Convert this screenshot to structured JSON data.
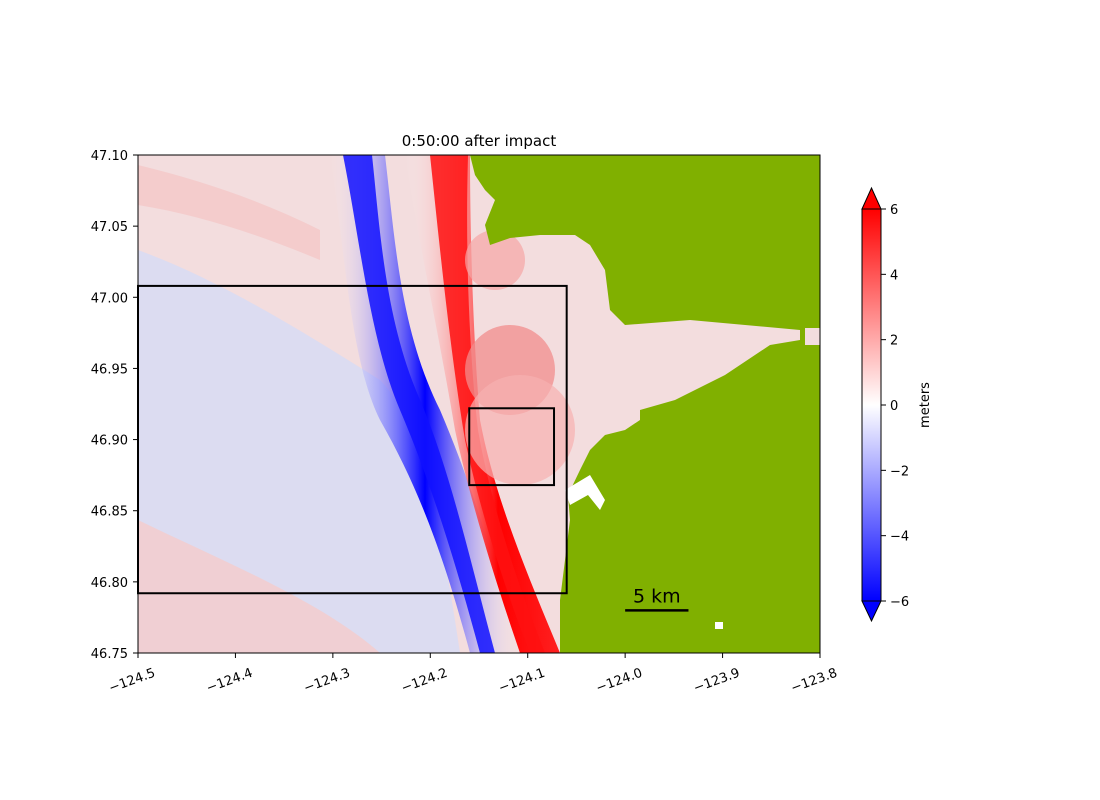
{
  "chart_data": {
    "type": "heatmap",
    "title": "0:50:00 after impact",
    "xlabel": "",
    "ylabel": "",
    "xlim": [
      -124.5,
      -123.8
    ],
    "ylim": [
      46.75,
      47.1
    ],
    "xticks": [
      -124.5,
      -124.4,
      -124.3,
      -124.2,
      -124.1,
      -124.0,
      -123.9,
      -123.8
    ],
    "xtick_labels": [
      "−124.5",
      "−124.4",
      "−124.3",
      "−124.2",
      "−124.1",
      "−124.0",
      "−123.9",
      "−123.8"
    ],
    "yticks": [
      46.75,
      46.8,
      46.85,
      46.9,
      46.95,
      47.0,
      47.05,
      47.1
    ],
    "ytick_labels": [
      "46.75",
      "46.80",
      "46.85",
      "46.90",
      "46.95",
      "47.00",
      "47.05",
      "47.10"
    ],
    "value_label": "meters",
    "colorbar": {
      "label": "meters",
      "range": [
        -6,
        6
      ],
      "extend": "both",
      "ticks": [
        -6,
        -4,
        -2,
        0,
        2,
        4,
        6
      ],
      "tick_labels": [
        "−6",
        "−4",
        "−2",
        "0",
        "2",
        "4",
        "6"
      ],
      "colors": {
        "low": "#0000ff",
        "mid": "#ffffff",
        "high": "#ff0000"
      }
    },
    "land_color": "#80b000",
    "rectangles": [
      {
        "name": "outer-region",
        "lon": [
          -124.5,
          -124.06
        ],
        "lat": [
          46.792,
          47.008
        ]
      },
      {
        "name": "inner-region",
        "lon": [
          -124.16,
          -124.073
        ],
        "lat": [
          46.868,
          46.922
        ]
      }
    ],
    "scale_bar": {
      "label": "5 km",
      "lon": [
        -124.0,
        -123.935
      ],
      "lat": 46.78
    },
    "grid": false
  }
}
